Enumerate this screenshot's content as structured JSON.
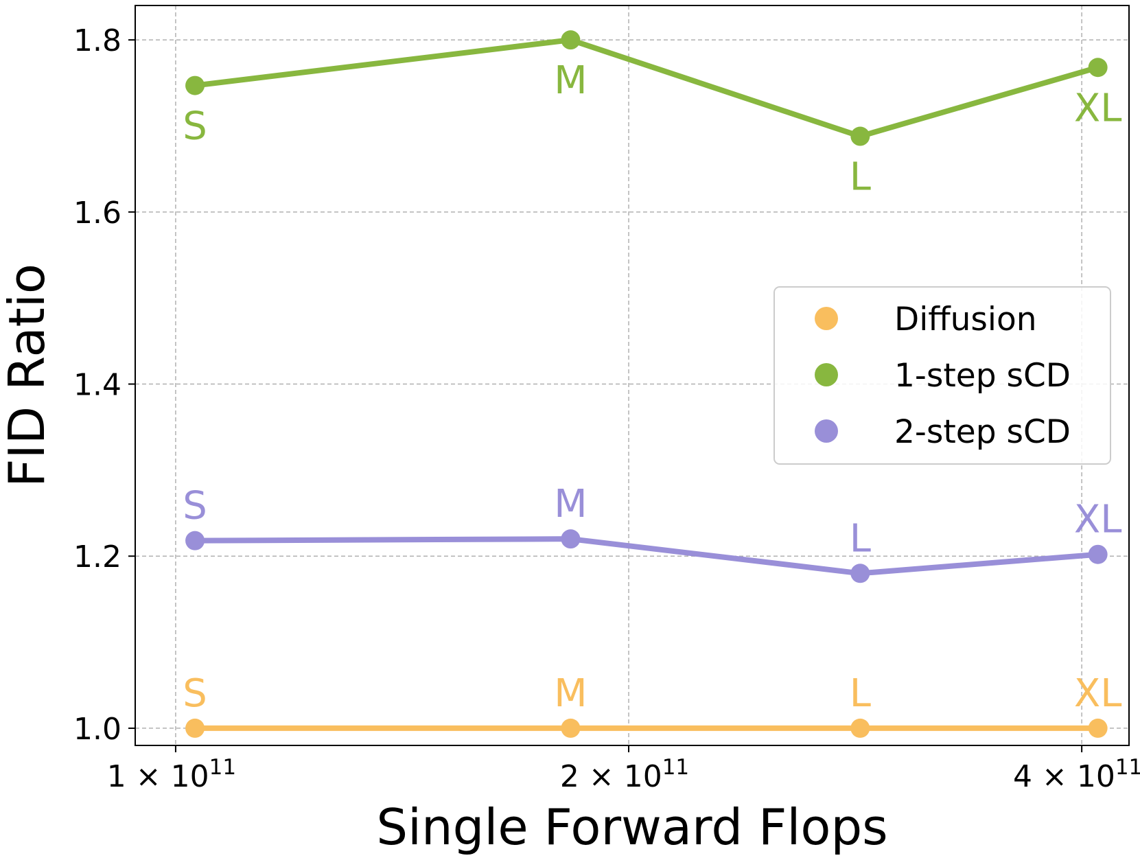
{
  "chart_data": {
    "type": "line",
    "xlabel": "Single Forward Flops",
    "ylabel": "FID Ratio",
    "xscale": "log",
    "xlim": [
      94000000000.0,
      430000000000.0
    ],
    "ylim": [
      0.98,
      1.84
    ],
    "grid": true,
    "legend_position": "center-right",
    "y_ticks": [
      {
        "value": 1.0,
        "label": "1.0"
      },
      {
        "value": 1.2,
        "label": "1.2"
      },
      {
        "value": 1.4,
        "label": "1.4"
      },
      {
        "value": 1.6,
        "label": "1.6"
      },
      {
        "value": 1.8,
        "label": "1.8"
      }
    ],
    "x_ticks": [
      {
        "value": 100000000000.0,
        "mantissa": "1",
        "exponent": "11"
      },
      {
        "value": 200000000000.0,
        "mantissa": "2",
        "exponent": "11"
      },
      {
        "value": 400000000000.0,
        "mantissa": "4",
        "exponent": "11"
      }
    ],
    "tick_times_symbol": "×",
    "tick_base": "10",
    "point_labels": [
      "S",
      "M",
      "L",
      "XL"
    ],
    "x": [
      103000000000.0,
      183000000000.0,
      285000000000.0,
      410000000000.0
    ],
    "series": [
      {
        "name": "Diffusion",
        "color": "#f9be5e",
        "values": [
          1.0,
          1.0,
          1.0,
          1.0
        ],
        "label_position": "above"
      },
      {
        "name": "1-step sCD",
        "color": "#88b73f",
        "values": [
          1.747,
          1.8,
          1.688,
          1.768
        ],
        "label_position": [
          "below",
          "below",
          "below",
          "below"
        ]
      },
      {
        "name": "2-step sCD",
        "color": "#998fd8",
        "values": [
          1.218,
          1.22,
          1.18,
          1.202
        ],
        "label_position": "above"
      }
    ]
  }
}
